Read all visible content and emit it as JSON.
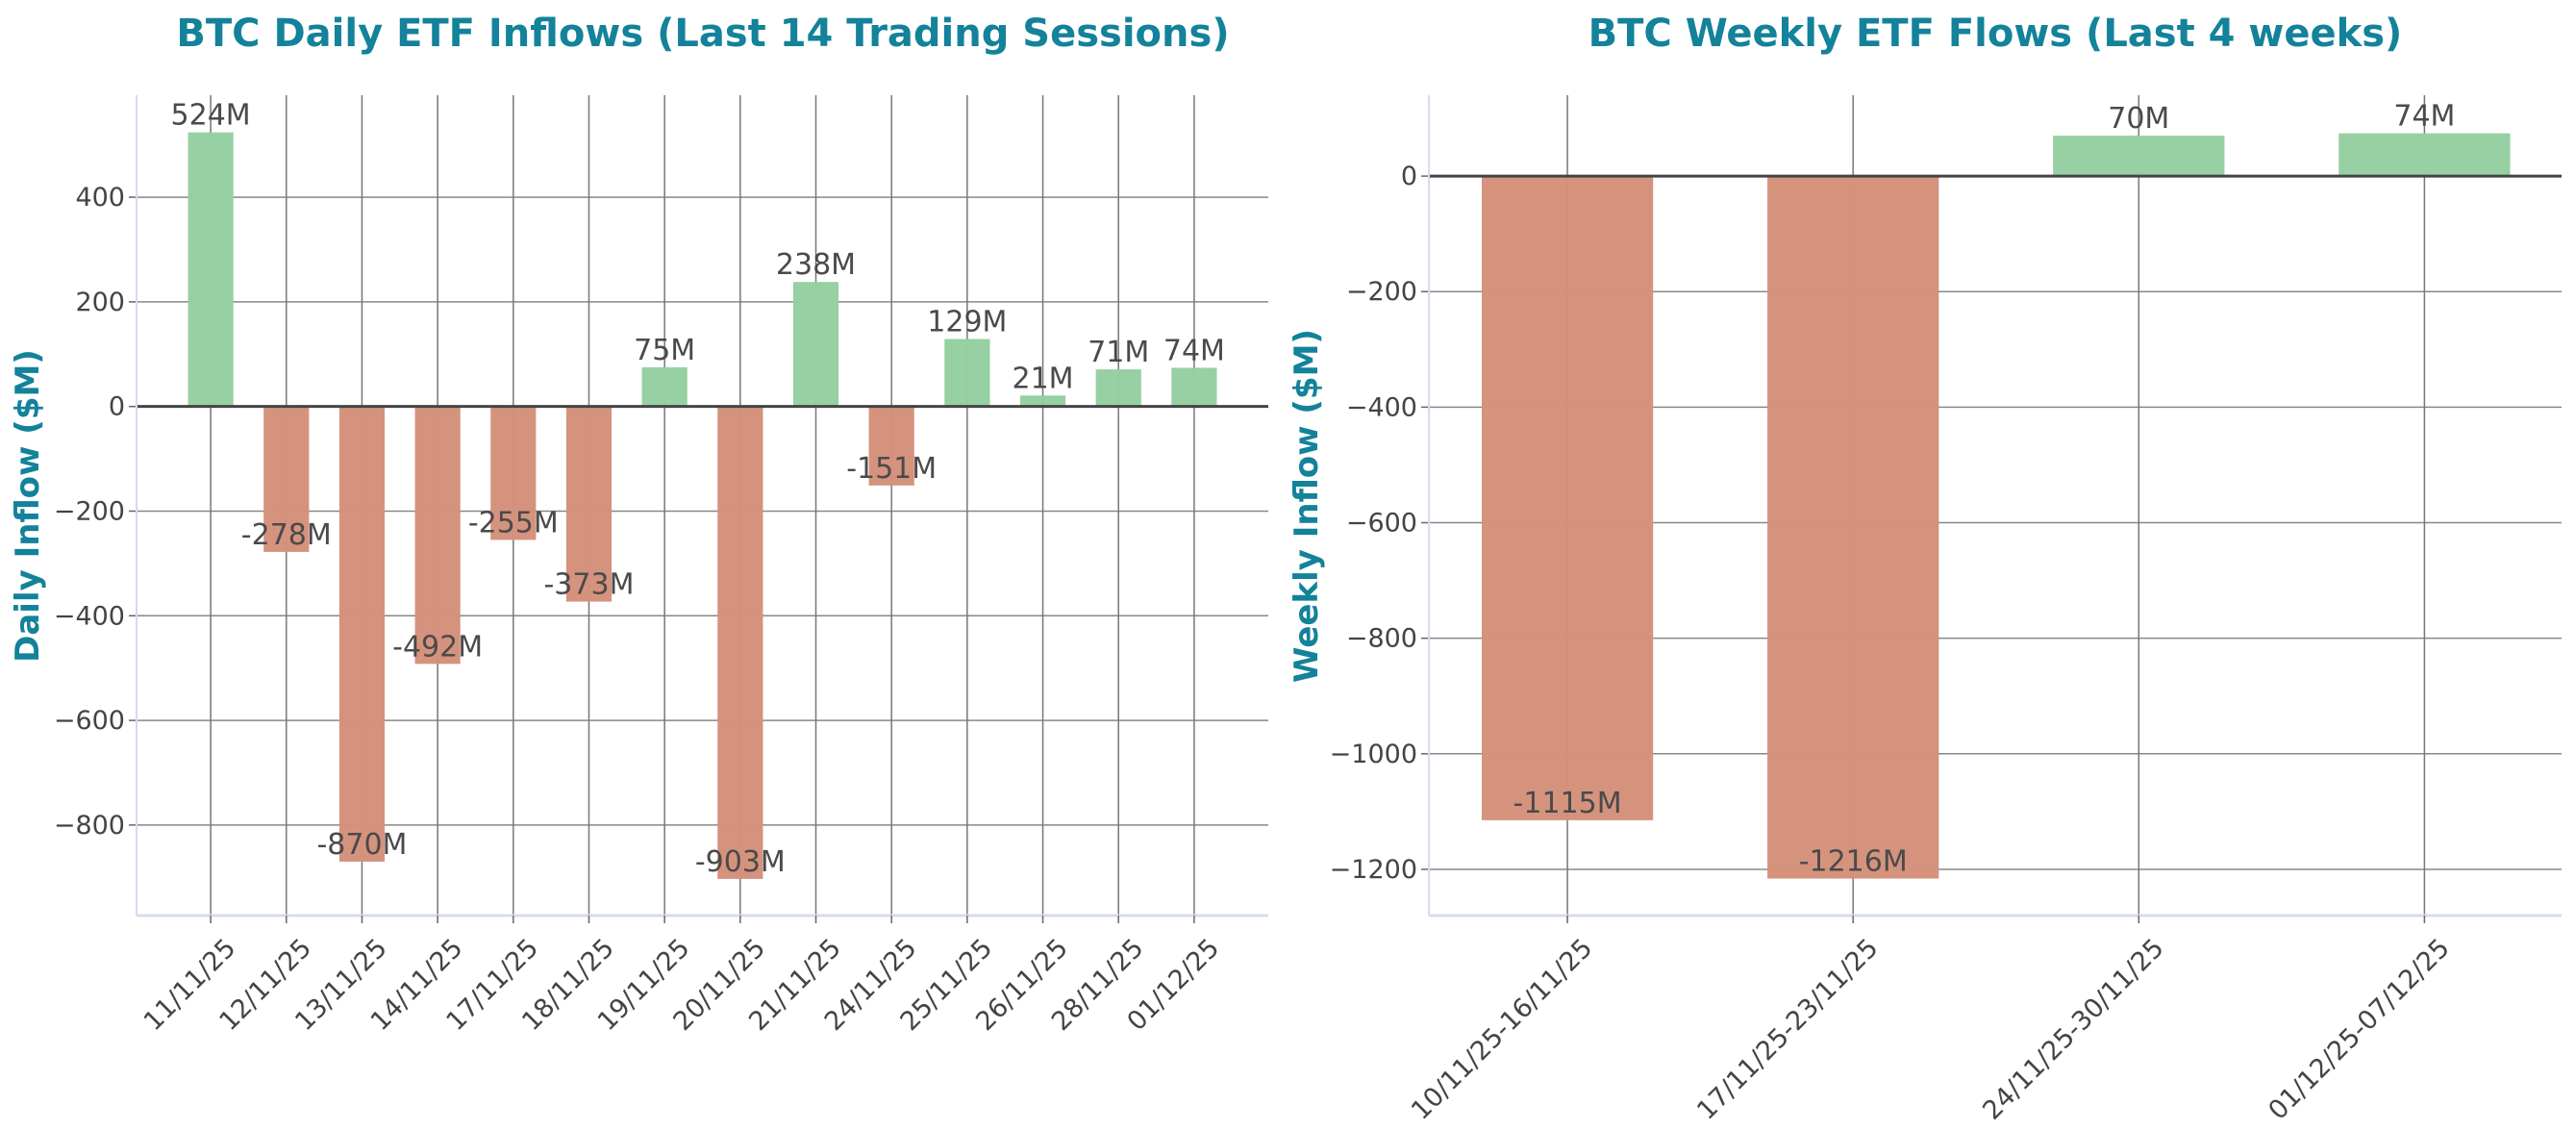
{
  "chart_data": [
    {
      "type": "bar",
      "title": "BTC Daily ETF Inflows (Last 14 Trading Sessions)",
      "xlabel": "",
      "ylabel": "Daily Inflow ($M)",
      "categories": [
        "11/11/25",
        "12/11/25",
        "13/11/25",
        "14/11/25",
        "17/11/25",
        "18/11/25",
        "19/11/25",
        "20/11/25",
        "21/11/25",
        "24/11/25",
        "25/11/25",
        "26/11/25",
        "28/11/25",
        "01/12/25"
      ],
      "values": [
        524,
        -278,
        -870,
        -492,
        -255,
        -373,
        75,
        -903,
        238,
        -151,
        129,
        21,
        71,
        74
      ],
      "data_labels": [
        "524M",
        "-278M",
        "-870M",
        "-492M",
        "-255M",
        "-373M",
        "75M",
        "-903M",
        "238M",
        "-151M",
        "129M",
        "21M",
        "71M",
        "74M"
      ],
      "ylim": [
        -973,
        595
      ],
      "yticks": [
        -800,
        -600,
        -400,
        -200,
        0,
        200,
        400
      ],
      "ytick_labels": [
        "−800",
        "−600",
        "−400",
        "−200",
        "0",
        "200",
        "400"
      ],
      "grid": true,
      "colors": {
        "positive": "#95cfa0",
        "negative": "#d4917b"
      }
    },
    {
      "type": "bar",
      "title": "BTC Weekly ETF Flows (Last 4 weeks)",
      "xlabel": "",
      "ylabel": "Weekly Inflow ($M)",
      "categories": [
        "10/11/25-16/11/25",
        "17/11/25-23/11/25",
        "24/11/25-30/11/25",
        "01/12/25-07/12/25"
      ],
      "values": [
        -1115,
        -1216,
        70,
        74
      ],
      "data_labels": [
        "-1115M",
        "-1216M",
        "70M",
        "74M"
      ],
      "ylim": [
        -1280,
        140
      ],
      "yticks": [
        -1200,
        -1000,
        -800,
        -600,
        -400,
        -200,
        0
      ],
      "ytick_labels": [
        "−1200",
        "−1000",
        "−800",
        "−600",
        "−400",
        "−200",
        "0"
      ],
      "grid": true,
      "colors": {
        "positive": "#95cfa0",
        "negative": "#d4917b"
      }
    }
  ]
}
